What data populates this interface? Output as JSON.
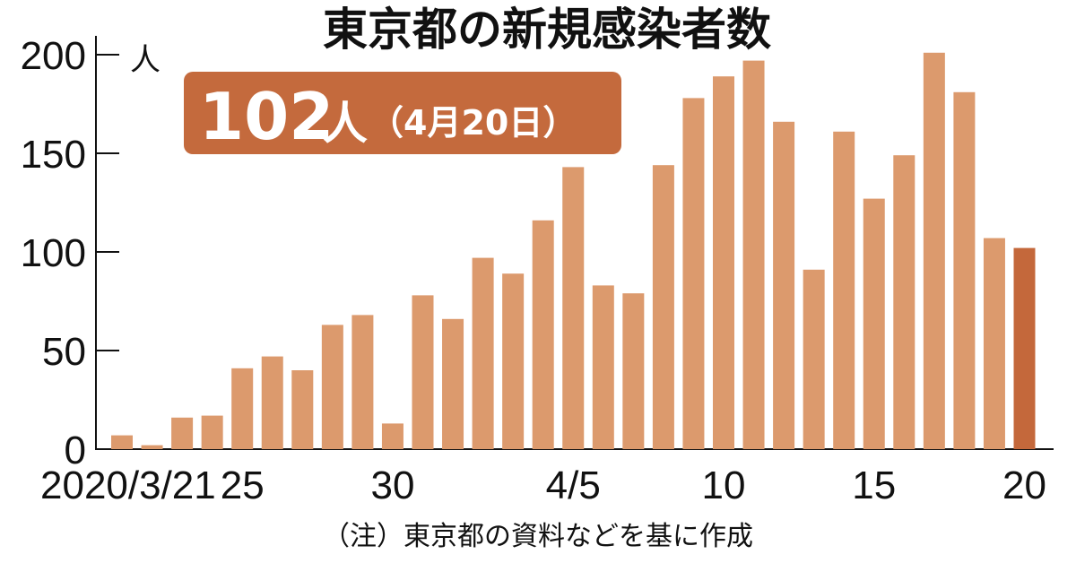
{
  "chart_data": {
    "type": "bar",
    "title": "東京都の新規感染者数",
    "highlight": {
      "value": "102",
      "unit": "人",
      "date": "（4月20日）"
    },
    "ylabel": "人",
    "ylim": [
      0,
      200
    ],
    "yticks": [
      "0",
      "50",
      "100",
      "150",
      "200"
    ],
    "xtick_labels": [
      {
        "index": 0,
        "label": "2020/3/21"
      },
      {
        "index": 4,
        "label": "25"
      },
      {
        "index": 9,
        "label": "30"
      },
      {
        "index": 15,
        "label": "4/5"
      },
      {
        "index": 20,
        "label": "10"
      },
      {
        "index": 25,
        "label": "15"
      },
      {
        "index": 30,
        "label": "20"
      }
    ],
    "categories": [
      "3/21",
      "3/22",
      "3/23",
      "3/24",
      "3/25",
      "3/26",
      "3/27",
      "3/28",
      "3/29",
      "3/30",
      "3/31",
      "4/1",
      "4/2",
      "4/3",
      "4/4",
      "4/5",
      "4/6",
      "4/7",
      "4/8",
      "4/9",
      "4/10",
      "4/11",
      "4/12",
      "4/13",
      "4/14",
      "4/15",
      "4/16",
      "4/17",
      "4/18",
      "4/19",
      "4/20"
    ],
    "values": [
      7,
      2,
      16,
      17,
      41,
      47,
      40,
      63,
      68,
      13,
      78,
      66,
      97,
      89,
      116,
      143,
      83,
      79,
      144,
      178,
      189,
      197,
      166,
      91,
      161,
      127,
      149,
      201,
      181,
      107,
      102
    ],
    "note": "（注）東京都の資料などを基に作成",
    "grid": false,
    "colors": {
      "bar": "#dc9a6d",
      "highlight_bar": "#c4683b",
      "badge": "#c46a3d"
    }
  }
}
